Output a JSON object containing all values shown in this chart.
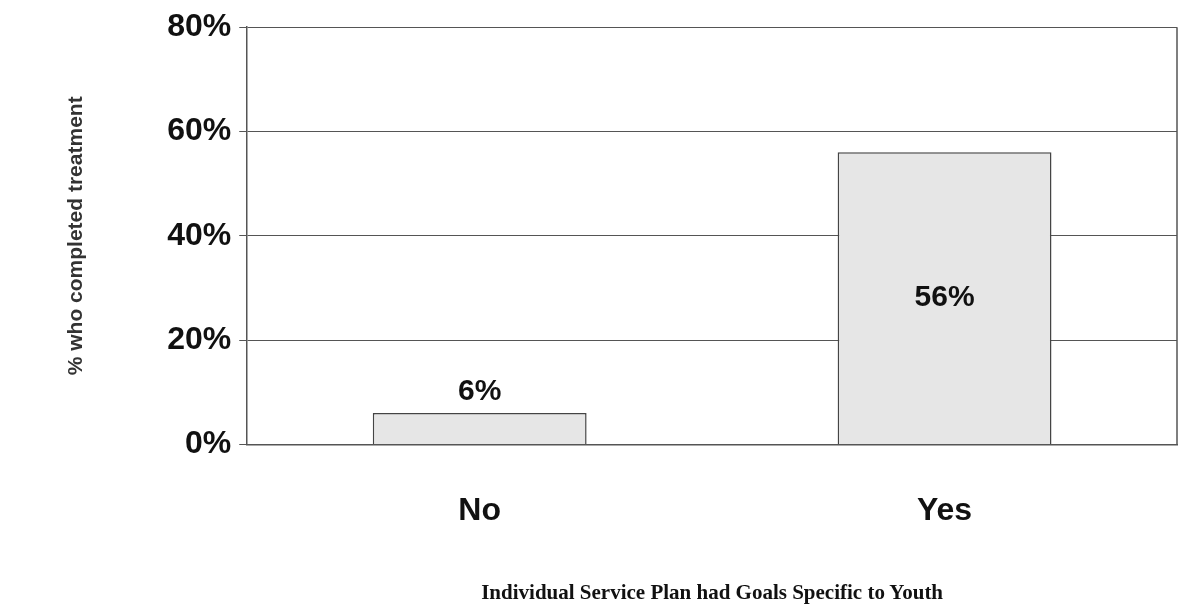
{
  "chart_data": {
    "type": "bar",
    "categories": [
      "No",
      "Yes"
    ],
    "values": [
      6,
      56
    ],
    "color": "#e6e6e6",
    "value_labels": [
      "6%",
      "56%"
    ],
    "ylim": [
      0,
      80
    ],
    "yticks": [
      {
        "value": 0,
        "label": "0%"
      },
      {
        "value": 20,
        "label": "20%"
      },
      {
        "value": 40,
        "label": "40%"
      },
      {
        "value": 60,
        "label": "60%"
      },
      {
        "value": 80,
        "label": "80%"
      }
    ],
    "ylabel": "% who completed treatment",
    "xlabel": "Individual Service Plan had Goals Specific to Youth",
    "grid": "y",
    "legend": false
  }
}
